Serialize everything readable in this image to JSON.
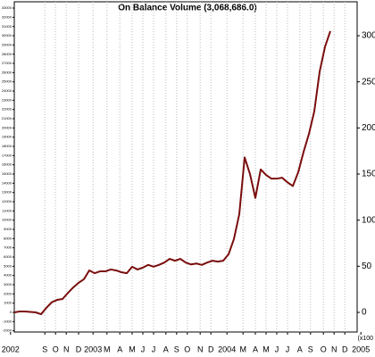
{
  "chart_data": {
    "type": "line",
    "title": "On Balance Volume (3,068,686.0)",
    "annotation": "(x100",
    "series": [
      {
        "name": "On Balance Volume",
        "color": "#7a0d0d",
        "values": [
          0,
          100,
          100,
          50,
          0,
          -200,
          500,
          1100,
          1350,
          1450,
          2100,
          2700,
          3200,
          3600,
          4550,
          4250,
          4450,
          4450,
          4650,
          4550,
          4350,
          4250,
          4950,
          4650,
          4850,
          5150,
          4950,
          5150,
          5400,
          5800,
          5600,
          5800,
          5400,
          5200,
          5300,
          5150,
          5400,
          5600,
          5500,
          5600,
          6300,
          7950,
          10650,
          16800,
          15000,
          12400,
          15500,
          14900,
          14500,
          14500,
          14600,
          14100,
          13700,
          15200,
          17400,
          19350,
          21800,
          26100,
          28800,
          30500
        ]
      }
    ],
    "xlim": [
      -2,
      66
    ],
    "xticks": [
      {
        "value": -0.7,
        "label": "2002"
      },
      {
        "value": 5.7,
        "label": "S"
      },
      {
        "value": 7.7,
        "label": "O"
      },
      {
        "value": 9.7,
        "label": "N"
      },
      {
        "value": 12,
        "label": "D"
      },
      {
        "value": 14.7,
        "label": "2003"
      },
      {
        "value": 17.3,
        "label": "M"
      },
      {
        "value": 19.7,
        "label": "A"
      },
      {
        "value": 22,
        "label": "M"
      },
      {
        "value": 24,
        "label": "J"
      },
      {
        "value": 26,
        "label": "J"
      },
      {
        "value": 28.3,
        "label": "A"
      },
      {
        "value": 30.3,
        "label": "S"
      },
      {
        "value": 32.3,
        "label": "O"
      },
      {
        "value": 34.7,
        "label": "N"
      },
      {
        "value": 36.7,
        "label": "D"
      },
      {
        "value": 39.7,
        "label": "2004"
      },
      {
        "value": 42.7,
        "label": "M"
      },
      {
        "value": 45,
        "label": "A"
      },
      {
        "value": 47,
        "label": "M"
      },
      {
        "value": 49,
        "label": "J"
      },
      {
        "value": 51,
        "label": "J"
      },
      {
        "value": 53.3,
        "label": "A"
      },
      {
        "value": 55.3,
        "label": "S"
      },
      {
        "value": 57.7,
        "label": "O"
      },
      {
        "value": 59.7,
        "label": "N"
      },
      {
        "value": 61.7,
        "label": "D"
      },
      {
        "value": 64.7,
        "label": "2005"
      }
    ],
    "ylim": [
      -2130,
      33680
    ],
    "yticks": [
      -2000,
      -1000,
      0,
      1000,
      2000,
      3000,
      4000,
      5000,
      6000,
      7000,
      8000,
      9000,
      10000,
      11000,
      12000,
      13000,
      14000,
      15000,
      16000,
      17000,
      18000,
      19000,
      20000,
      21000,
      22000,
      23000,
      24000,
      25000,
      26000,
      27000,
      28000,
      29000,
      30000,
      31000,
      32000,
      33000
    ],
    "y2lim": [
      -21.3,
      336.8
    ],
    "y2ticks": [
      0,
      50,
      100,
      150,
      200,
      250,
      300
    ],
    "grid": true
  }
}
